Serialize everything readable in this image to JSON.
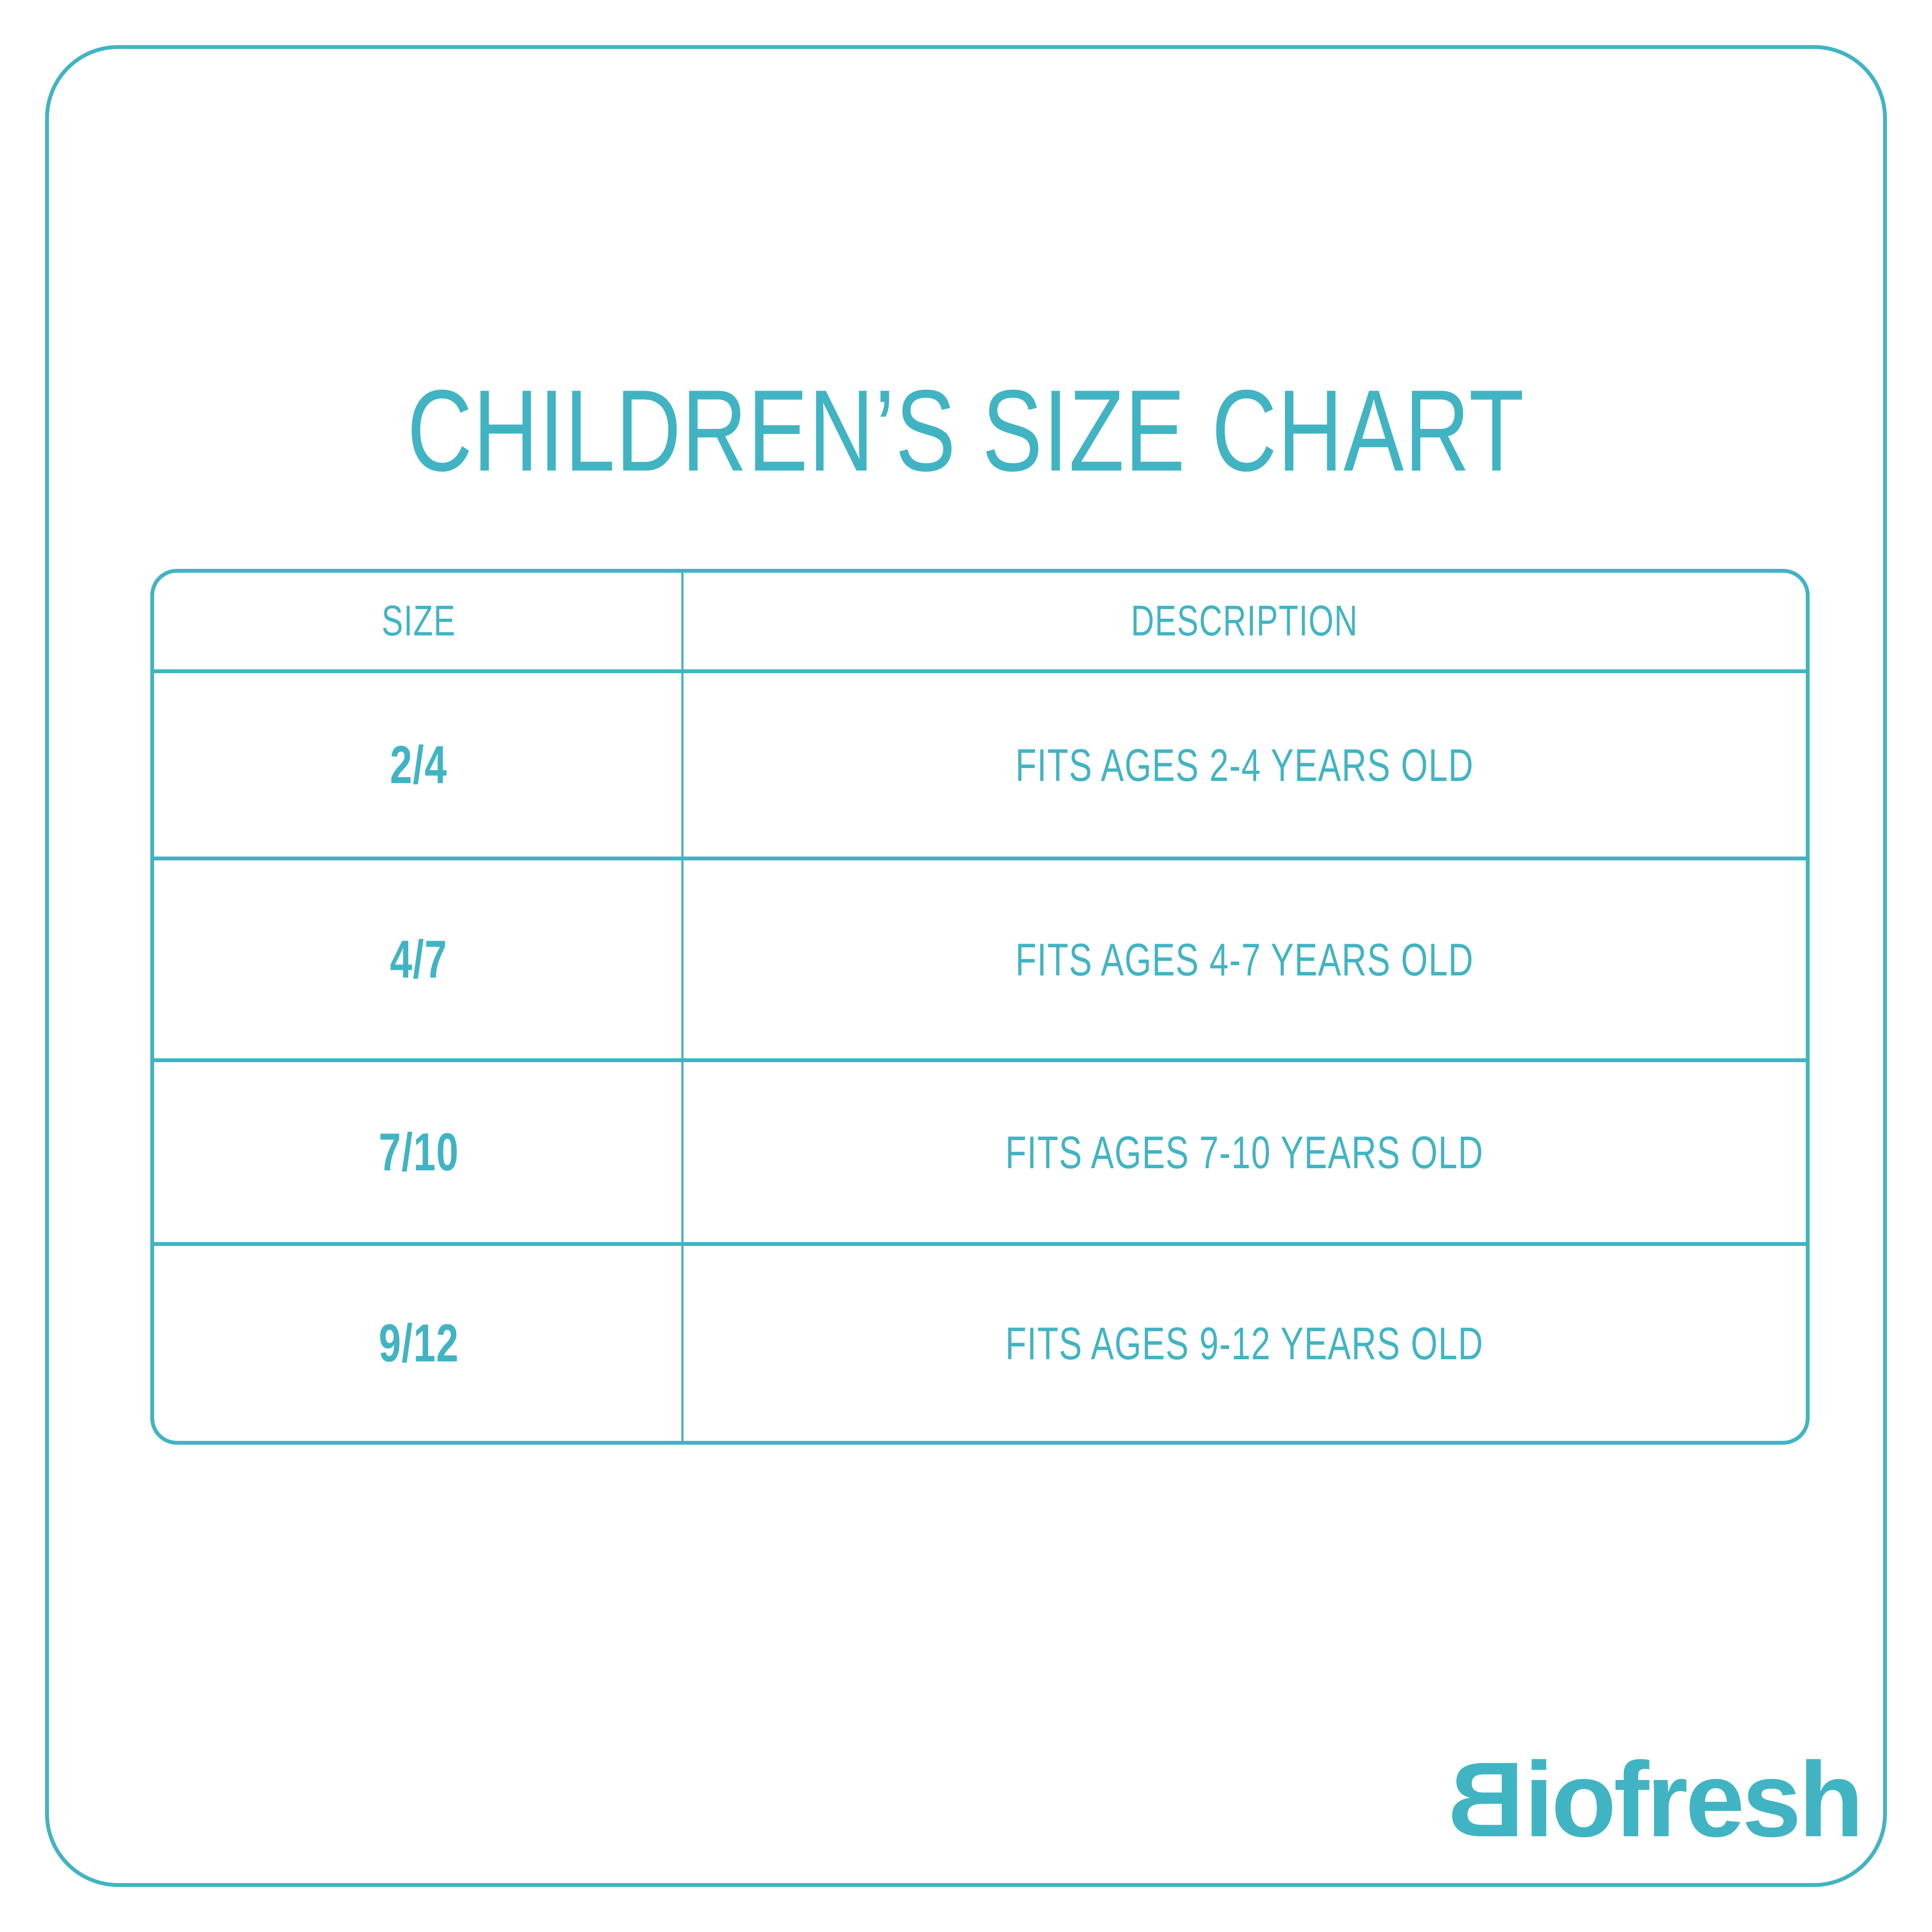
{
  "page": {
    "background": "#ffffff",
    "accent": "#41B4C3"
  },
  "title": "CHILDREN’S SIZE CHART",
  "chart_data": {
    "type": "table",
    "title": "CHILDREN’S SIZE CHART",
    "columns": [
      "SIZE",
      "DESCRIPTION"
    ],
    "rows": [
      [
        "2/4",
        "FITS AGES 2-4 YEARS OLD"
      ],
      [
        "4/7",
        "FITS AGES 4-7 YEARS OLD"
      ],
      [
        "7/10",
        "FITS AGES 7-10 YEARS OLD"
      ],
      [
        "9/12",
        "FITS AGES 9-12 YEARS OLD"
      ]
    ]
  },
  "table": {
    "headers": {
      "size": "SIZE",
      "description": "DESCRIPTION"
    },
    "rows": [
      {
        "size": "2/4",
        "description": "FITS AGES 2-4 YEARS OLD"
      },
      {
        "size": "4/7",
        "description": "FITS AGES 4-7 YEARS OLD"
      },
      {
        "size": "7/10",
        "description": "FITS AGES 7-10 YEARS OLD"
      },
      {
        "size": "9/12",
        "description": "FITS AGES 9-12 YEARS OLD"
      }
    ]
  },
  "brand": {
    "logo_text": "Biofresh",
    "first_letter": "B",
    "rest": "iofresh"
  }
}
